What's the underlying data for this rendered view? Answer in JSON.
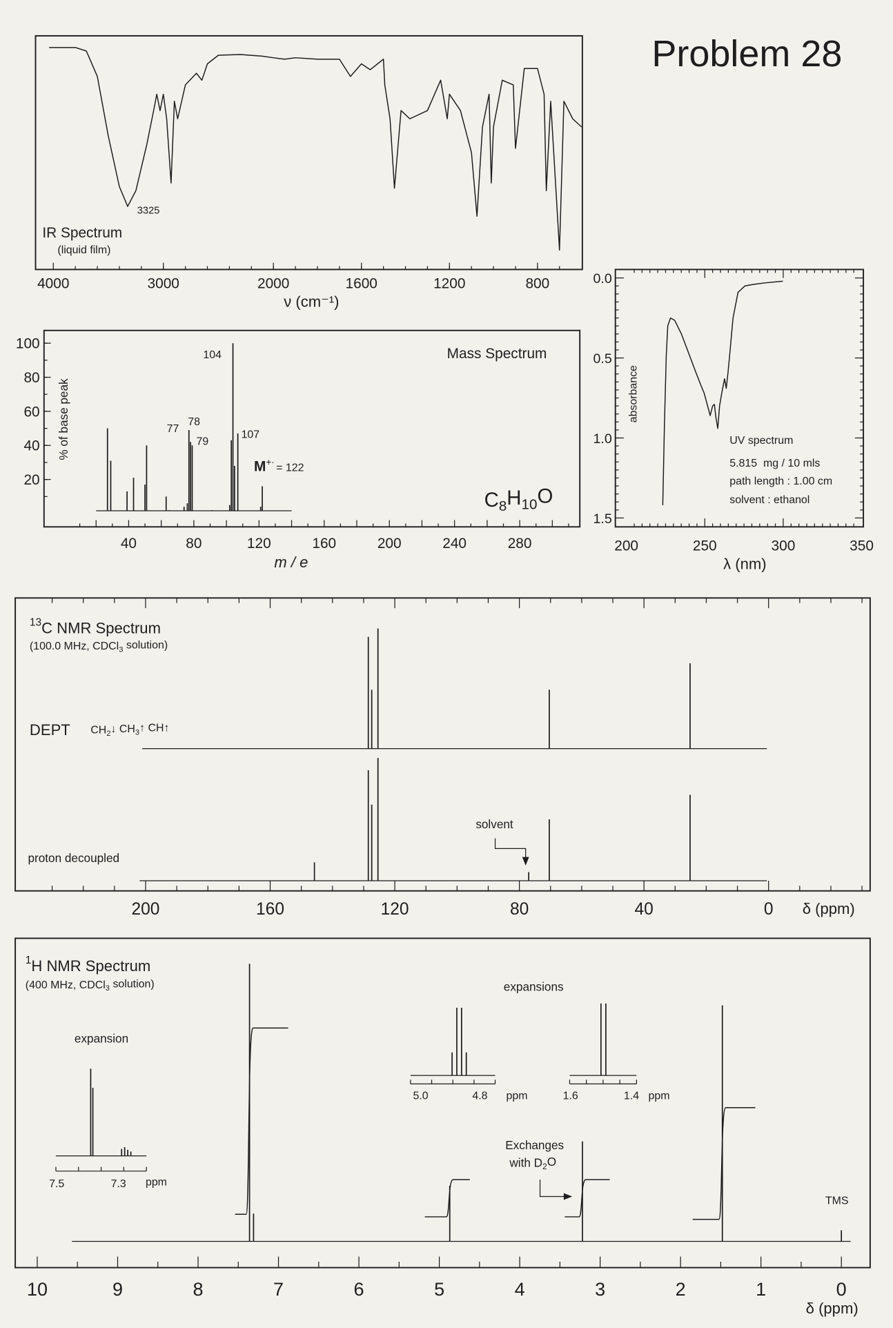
{
  "page": {
    "title": "Problem 28"
  },
  "ir": {
    "title": "IR Spectrum",
    "subtitle": "(liquid film)",
    "peak_label": "3325",
    "xlabel": "ν (cm⁻¹)"
  },
  "ms": {
    "title": "Mass Spectrum",
    "ylabel": "% of base peak",
    "xlabel": "m / e",
    "formula": "C8H10O",
    "molecular_ion": {
      "symbol": "M",
      "charge": "+·",
      "value": "= 122"
    },
    "peak_labels": {
      "p104": "104",
      "p77": "77",
      "p78": "78",
      "p79": "79",
      "p107": "107"
    }
  },
  "uv": {
    "ylabel": "absorbance",
    "xlabel": "λ (nm)",
    "title": "UV spectrum",
    "concentration": "5.815  mg / 10 mls",
    "path_length": "path length : 1.00 cm",
    "solvent": "solvent : ethanol"
  },
  "c13": {
    "title": "13C NMR Spectrum",
    "subtitle": "(100.0 MHz, CDCl3 solution)",
    "dept_label": "DEPT",
    "dept_phases": "CH2↓ CH3↑ CH↑",
    "decoupled_label": "proton decoupled",
    "solvent_label": "solvent",
    "xlabel": "δ (ppm)"
  },
  "h1": {
    "title": "1H NMR Spectrum",
    "subtitle": "(400 MHz, CDCl3 solution)",
    "expansion_label": "expansion",
    "expansions_label": "expansions",
    "exchange_label_1": "Exchanges",
    "exchange_label_2": "with D2O",
    "tms_label": "TMS",
    "xlabel": "δ (ppm)",
    "inset_aromatic": {
      "ticks": [
        "7.5",
        "7.3"
      ],
      "unit": "ppm"
    },
    "inset_ch": {
      "ticks": [
        "5.0",
        "4.8"
      ],
      "unit": "ppm"
    },
    "inset_ch3": {
      "ticks": [
        "1.6",
        "1.4"
      ],
      "unit": "ppm"
    }
  },
  "chart_data": [
    {
      "type": "line",
      "title": "IR Spectrum",
      "xlabel": "ν (cm⁻¹)",
      "ylabel": "",
      "x_ticks": [
        4000,
        3000,
        2000,
        1600,
        1200,
        800
      ],
      "x_reversed": true,
      "x_scale_change_at": 2000,
      "ylim_percent_transmittance": [
        0,
        100
      ],
      "annotations": [
        {
          "x": 3325,
          "text": "3325"
        }
      ],
      "points": [
        [
          3960,
          95
        ],
        [
          3800,
          95
        ],
        [
          3700,
          93.5
        ],
        [
          3600,
          82.6
        ],
        [
          3500,
          57
        ],
        [
          3400,
          35.5
        ],
        [
          3325,
          27
        ],
        [
          3250,
          33.7
        ],
        [
          3150,
          53.6
        ],
        [
          3080,
          70
        ],
        [
          3060,
          75
        ],
        [
          3030,
          68
        ],
        [
          3000,
          75
        ],
        [
          2970,
          64.5
        ],
        [
          2930,
          37
        ],
        [
          2900,
          72
        ],
        [
          2870,
          64.5
        ],
        [
          2800,
          79
        ],
        [
          2700,
          84
        ],
        [
          2650,
          81
        ],
        [
          2600,
          88
        ],
        [
          2500,
          91.7
        ],
        [
          2300,
          92
        ],
        [
          2100,
          91.3
        ],
        [
          2000,
          90.6
        ],
        [
          1950,
          90
        ],
        [
          1900,
          90.6
        ],
        [
          1800,
          90
        ],
        [
          1700,
          90
        ],
        [
          1650,
          82.6
        ],
        [
          1600,
          88
        ],
        [
          1560,
          85.5
        ],
        [
          1500,
          90
        ],
        [
          1494,
          79
        ],
        [
          1470,
          64.5
        ],
        [
          1450,
          34.8
        ],
        [
          1420,
          68
        ],
        [
          1380,
          64.5
        ],
        [
          1300,
          68
        ],
        [
          1240,
          81
        ],
        [
          1210,
          64.5
        ],
        [
          1200,
          75
        ],
        [
          1150,
          68
        ],
        [
          1100,
          50
        ],
        [
          1075,
          22.8
        ],
        [
          1050,
          61
        ],
        [
          1020,
          75
        ],
        [
          1010,
          37
        ],
        [
          1000,
          61
        ],
        [
          960,
          81
        ],
        [
          910,
          79
        ],
        [
          900,
          51.8
        ],
        [
          860,
          86
        ],
        [
          800,
          86
        ],
        [
          770,
          75
        ],
        [
          760,
          33.7
        ],
        [
          740,
          72
        ],
        [
          700,
          8.3
        ],
        [
          680,
          72
        ],
        [
          640,
          64.5
        ],
        [
          600,
          61
        ]
      ]
    },
    {
      "type": "bar",
      "title": "Mass Spectrum",
      "xlabel": "m / e",
      "ylabel": "% of base peak",
      "xlim": [
        0,
        320
      ],
      "ylim": [
        0,
        100
      ],
      "x_ticks": [
        40,
        80,
        120,
        160,
        200,
        240,
        280
      ],
      "y_ticks": [
        20,
        40,
        60,
        80,
        100
      ],
      "peaks": [
        [
          27,
          50
        ],
        [
          29,
          31
        ],
        [
          39,
          13
        ],
        [
          43,
          21
        ],
        [
          50,
          17
        ],
        [
          51,
          40
        ],
        [
          63,
          10
        ],
        [
          65,
          2
        ],
        [
          74,
          4
        ],
        [
          76,
          6
        ],
        [
          77,
          49
        ],
        [
          78,
          42
        ],
        [
          79,
          40
        ],
        [
          91,
          2
        ],
        [
          102,
          5
        ],
        [
          103,
          43
        ],
        [
          104,
          100
        ],
        [
          105,
          28
        ],
        [
          107,
          47
        ],
        [
          121,
          4
        ],
        [
          122,
          16
        ]
      ]
    },
    {
      "type": "line",
      "title": "UV spectrum",
      "xlabel": "λ (nm)",
      "ylabel": "absorbance",
      "xlim": [
        200,
        350
      ],
      "ylim": [
        0,
        1.5
      ],
      "y_reversed": true,
      "x_ticks": [
        200,
        250,
        300,
        350
      ],
      "y_ticks": [
        "0.0",
        "0.5",
        "1.0",
        "1.5"
      ],
      "points": [
        [
          223.2,
          1.42
        ],
        [
          224.3,
          0.91
        ],
        [
          225.4,
          0.49
        ],
        [
          226.4,
          0.3
        ],
        [
          228.1,
          0.25
        ],
        [
          230.8,
          0.265
        ],
        [
          235.1,
          0.35
        ],
        [
          240.5,
          0.49
        ],
        [
          244.3,
          0.59
        ],
        [
          247.5,
          0.67
        ],
        [
          249.6,
          0.72
        ],
        [
          251.8,
          0.8
        ],
        [
          253.4,
          0.86
        ],
        [
          255.0,
          0.8
        ],
        [
          256.1,
          0.79
        ],
        [
          257.2,
          0.88
        ],
        [
          258.3,
          0.94
        ],
        [
          259.4,
          0.8
        ],
        [
          261.0,
          0.71
        ],
        [
          262.6,
          0.63
        ],
        [
          263.7,
          0.69
        ],
        [
          264.8,
          0.59
        ],
        [
          265.8,
          0.49
        ],
        [
          268.0,
          0.25
        ],
        [
          271.2,
          0.09
        ],
        [
          275.6,
          0.05
        ],
        [
          281.0,
          0.04
        ],
        [
          289.0,
          0.03
        ],
        [
          299.8,
          0.02
        ]
      ]
    },
    {
      "type": "bar",
      "title": "13C NMR Spectrum",
      "xlabel": "δ (ppm)",
      "xlim": [
        200,
        0
      ],
      "x_ticks": [
        200,
        160,
        120,
        80,
        40,
        0
      ],
      "dept_peaks": [
        [
          128.5,
          93
        ],
        [
          127.4,
          49
        ],
        [
          125.4,
          100
        ],
        [
          70.4,
          49
        ],
        [
          25.2,
          71
        ]
      ],
      "decoupled_peaks": [
        [
          145.8,
          15
        ],
        [
          128.5,
          90
        ],
        [
          127.4,
          62
        ],
        [
          125.4,
          100
        ],
        [
          77.0,
          7
        ],
        [
          70.4,
          50
        ],
        [
          25.2,
          70
        ]
      ],
      "solvent_ppm": 77.0
    },
    {
      "type": "bar",
      "title": "1H NMR Spectrum",
      "xlabel": "δ (ppm)",
      "xlim": [
        10,
        0
      ],
      "x_ticks": [
        10,
        9,
        8,
        7,
        6,
        5,
        4,
        3,
        2,
        1,
        0
      ],
      "peaks": [
        [
          7.36,
          100
        ],
        [
          7.31,
          10
        ],
        [
          4.87,
          20
        ],
        [
          3.22,
          36
        ],
        [
          1.48,
          85
        ],
        [
          0.0,
          4
        ]
      ],
      "integrals": [
        {
          "from": 7.54,
          "at": 7.36,
          "to": 6.88,
          "relative": 5
        },
        {
          "from": 5.18,
          "at": 4.87,
          "to": 4.62,
          "relative": 1
        },
        {
          "from": 3.44,
          "at": 3.22,
          "to": 2.88,
          "relative": 1
        },
        {
          "from": 1.85,
          "at": 1.48,
          "to": 1.07,
          "relative": 3
        }
      ],
      "expansions": [
        {
          "range": [
            7.5,
            7.3
          ],
          "peaks": [
            [
              7.39,
              100
            ],
            [
              7.383,
              78
            ],
            [
              7.29,
              8
            ],
            [
              7.28,
              10
            ],
            [
              7.27,
              7
            ],
            [
              7.26,
              5
            ]
          ]
        },
        {
          "range": [
            5.0,
            4.8
          ],
          "peaks": [
            [
              4.894,
              34
            ],
            [
              4.878,
              100
            ],
            [
              4.862,
              100
            ],
            [
              4.846,
              34
            ]
          ]
        },
        {
          "range": [
            1.6,
            1.4
          ],
          "peaks": [
            [
              1.5,
              100
            ],
            [
              1.484,
              100
            ]
          ]
        }
      ]
    }
  ]
}
